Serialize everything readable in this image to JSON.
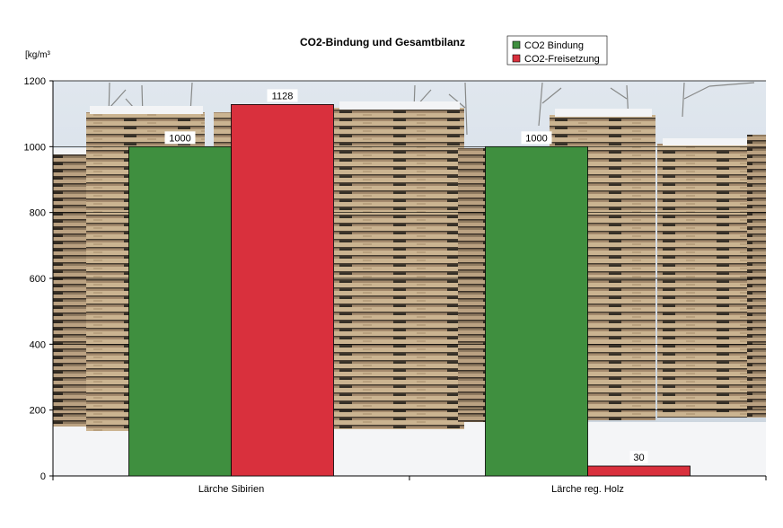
{
  "chart_data": {
    "type": "bar",
    "title": "CO2-Bindung und Gesamtbilanz",
    "ylabel": "[kg/m³",
    "xlabel": "",
    "ylim": [
      0,
      1200
    ],
    "yticks": [
      0,
      200,
      400,
      600,
      800,
      1000,
      1200
    ],
    "categories": [
      "Lärche Sibirien",
      "Lärche reg. Holz"
    ],
    "series": [
      {
        "name": "CO2 Bindung",
        "values": [
          1000,
          1000
        ],
        "color": "#3f8f3f"
      },
      {
        "name": "CO2-Freisetzung",
        "values": [
          1128,
          30
        ],
        "color": "#d9303d"
      }
    ],
    "data_labels": true,
    "legend_position": "top-right",
    "background": "photo of stacked larch timber planks in snowy forest"
  }
}
